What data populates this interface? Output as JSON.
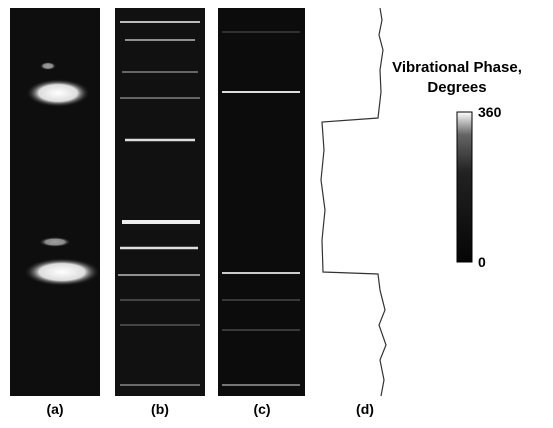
{
  "figure": {
    "panels": [
      "(a)",
      "(b)",
      "(c)",
      "(d)"
    ],
    "colorbar": {
      "title_lines": [
        "Vibrational Phase,",
        "Degrees"
      ],
      "top_label": "360",
      "bottom_label": "0"
    }
  }
}
